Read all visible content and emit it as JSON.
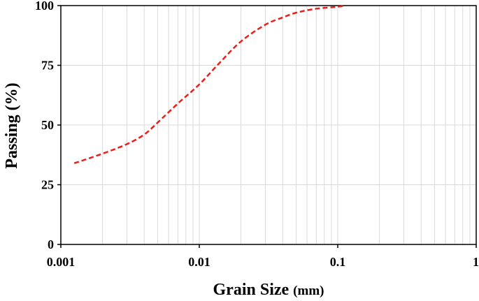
{
  "chart_data": {
    "type": "line",
    "title": "",
    "xlabel": "Grain Size",
    "xlabel_unit": "(mm)",
    "ylabel": "Passing (%)",
    "x_scale": "log",
    "xlim": [
      0.001,
      1
    ],
    "ylim": [
      0,
      100
    ],
    "x_ticks": [
      0.001,
      0.01,
      0.1,
      1
    ],
    "x_tick_labels": [
      "0.001",
      "0.01",
      "0.1",
      "1"
    ],
    "y_ticks": [
      0,
      25,
      50,
      75,
      100
    ],
    "y_tick_labels": [
      "0",
      "25",
      "50",
      "75",
      "100"
    ],
    "grid": true,
    "legend": "none",
    "series": [
      {
        "color": "#e8201c",
        "line_style": "dashed",
        "x": [
          0.00125,
          0.002,
          0.003,
          0.004,
          0.005,
          0.007,
          0.01,
          0.014,
          0.02,
          0.03,
          0.04,
          0.05,
          0.07,
          0.1,
          0.112
        ],
        "y": [
          34,
          38,
          42,
          46,
          51,
          59,
          67,
          76,
          85,
          92,
          95,
          97,
          98.7,
          99.5,
          100
        ]
      }
    ]
  }
}
